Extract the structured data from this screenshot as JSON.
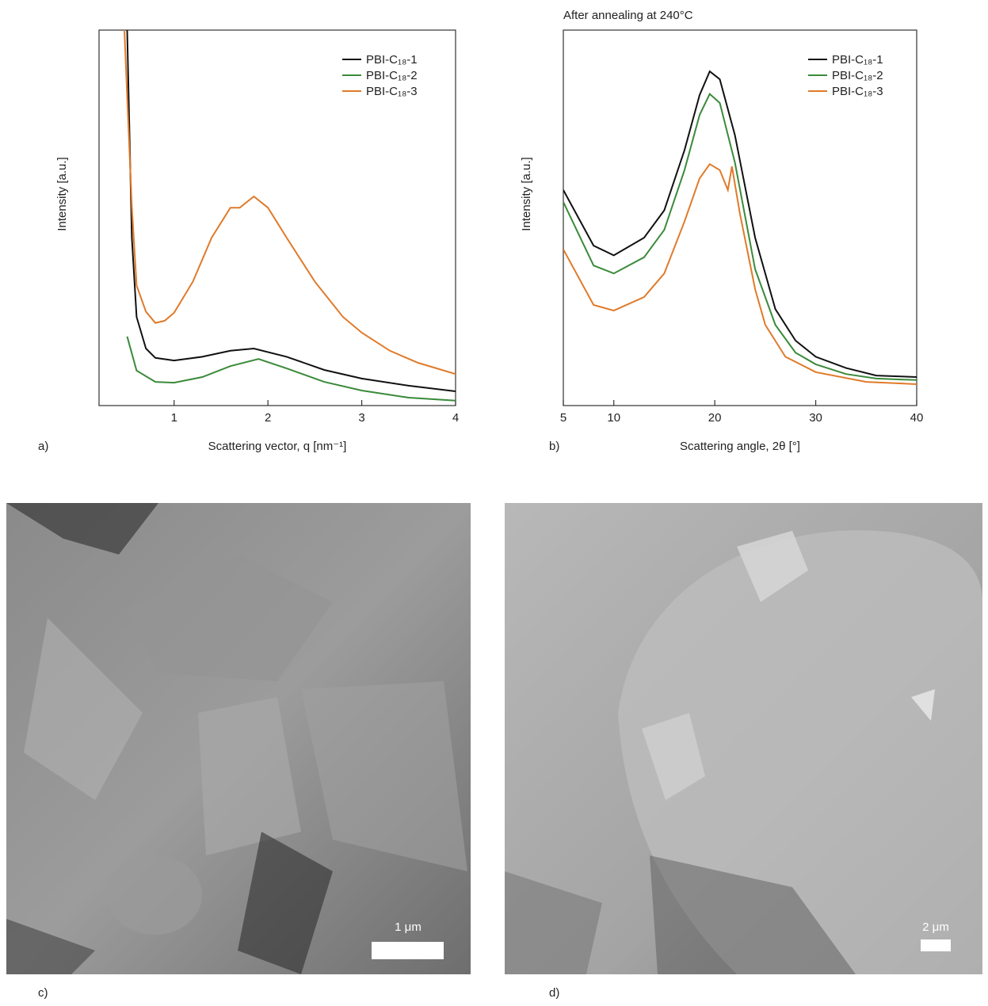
{
  "chart_data": [
    {
      "type": "line",
      "panel": "a)",
      "xlabel": "Scattering vector, q [nm⁻¹]",
      "ylabel": "Intensity [a.u.]",
      "xlim": [
        0.2,
        4
      ],
      "ylim": [
        0,
        100
      ],
      "xticks": [
        1,
        2,
        3,
        4
      ],
      "series": [
        {
          "name": "PBI-C₁₈-1",
          "color": "#111111",
          "x": [
            0.5,
            0.55,
            0.6,
            0.7,
            0.8,
            1.0,
            1.3,
            1.6,
            1.85,
            2.2,
            2.6,
            3.0,
            3.5,
            4.0
          ],
          "values": [
            100,
            44.7,
            23.6,
            15.2,
            12.7,
            12,
            13,
            14.6,
            15.2,
            13,
            9.5,
            7.2,
            5.3,
            3.8
          ]
        },
        {
          "name": "PBI-C₁₈-2",
          "color": "#3a8a3a",
          "x": [
            0.5,
            0.6,
            0.8,
            1.0,
            1.3,
            1.6,
            1.9,
            2.2,
            2.6,
            3.0,
            3.5,
            4.0
          ],
          "values": [
            18.4,
            9.3,
            6.3,
            6.1,
            7.6,
            10.5,
            12.4,
            9.9,
            6.3,
            4,
            2.1,
            1.3
          ]
        },
        {
          "name": "PBI-C₁₈-3",
          "color": "#e07a2a",
          "x": [
            0.47,
            0.55,
            0.6,
            0.7,
            0.8,
            0.9,
            1.0,
            1.2,
            1.4,
            1.6,
            1.7,
            1.85,
            2.0,
            2.2,
            2.5,
            2.8,
            3.0,
            3.3,
            3.6,
            4.0
          ],
          "values": [
            100,
            53,
            32,
            25,
            22,
            22.6,
            24.7,
            33,
            44.7,
            52.7,
            52.7,
            55.7,
            52.7,
            44.7,
            33,
            23.6,
            19.4,
            14.6,
            11.4,
            8.4
          ]
        }
      ]
    },
    {
      "type": "line",
      "panel": "b)",
      "title": "After annealing at 240°C",
      "xlabel": "Scattering angle, 2θ [°]",
      "ylabel": "Intensity [a.u.]",
      "xlim": [
        5,
        40
      ],
      "ylim": [
        0,
        100
      ],
      "xticks": [
        5,
        10,
        20,
        30,
        40
      ],
      "series": [
        {
          "name": "PBI-C₁₈-1",
          "color": "#111111",
          "x": [
            5,
            8,
            10,
            13,
            15,
            17,
            18.5,
            19.5,
            20.5,
            22,
            24,
            26,
            28,
            30,
            33,
            36,
            40
          ],
          "values": [
            57.4,
            42.6,
            40,
            44.7,
            52,
            68,
            82.7,
            89,
            86.9,
            72,
            44.7,
            25.7,
            17.3,
            13,
            10,
            8,
            7.6
          ]
        },
        {
          "name": "PBI-C₁₈-2",
          "color": "#3a8a3a",
          "x": [
            5,
            8,
            10,
            13,
            15,
            17,
            18.5,
            19.5,
            20.5,
            22,
            24,
            26,
            28,
            30,
            33,
            36,
            40
          ],
          "values": [
            54.2,
            37.3,
            35.2,
            39.5,
            46.8,
            62.7,
            77.4,
            83,
            80.6,
            64.7,
            36.3,
            21.5,
            14.1,
            11,
            8.4,
            7.2,
            6.8
          ]
        },
        {
          "name": "PBI-C₁₈-3",
          "color": "#e07a2a",
          "x": [
            5,
            8,
            10,
            13,
            15,
            17,
            18.5,
            19.5,
            20.5,
            21.3,
            21.7,
            22.5,
            24,
            25,
            27,
            30,
            35,
            40
          ],
          "values": [
            41.6,
            26.8,
            25.3,
            28.9,
            35.2,
            49,
            60.5,
            64.3,
            62.7,
            57.4,
            63.7,
            51,
            31,
            21.5,
            13,
            8.9,
            6.3,
            5.7
          ]
        }
      ]
    }
  ],
  "images": [
    {
      "panel": "c)",
      "scale_bar": "1 μm"
    },
    {
      "panel": "d)",
      "scale_bar": "2 μm"
    }
  ]
}
